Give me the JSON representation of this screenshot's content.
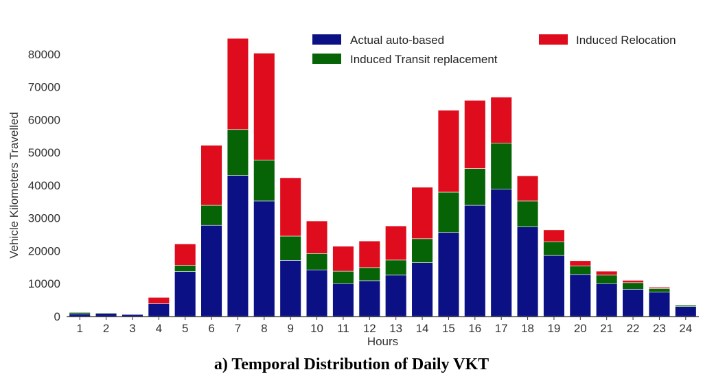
{
  "caption": "a) Temporal Distribution of Daily VKT",
  "chart_data": {
    "type": "bar",
    "stacked": true,
    "title": "",
    "xlabel": "Hours",
    "ylabel": "Vehicle Kilometers Travelled",
    "ylim": [
      0,
      85000
    ],
    "yticks": [
      0,
      10000,
      20000,
      30000,
      40000,
      50000,
      60000,
      70000,
      80000
    ],
    "grid": false,
    "legend_position": "top",
    "categories": [
      "1",
      "2",
      "3",
      "4",
      "5",
      "6",
      "7",
      "8",
      "9",
      "10",
      "11",
      "12",
      "13",
      "14",
      "15",
      "16",
      "17",
      "18",
      "19",
      "20",
      "21",
      "22",
      "23",
      "24"
    ],
    "series": [
      {
        "name": "Actual auto-based",
        "color": "#0b1185",
        "values": [
          800,
          900,
          600,
          3900,
          13700,
          27800,
          43000,
          35200,
          17100,
          14200,
          10000,
          10900,
          12600,
          16400,
          25600,
          33900,
          38800,
          27300,
          18600,
          12800,
          10000,
          8300,
          7400,
          3000
        ]
      },
      {
        "name": "Induced Transit replacement",
        "color": "#066406",
        "values": [
          400,
          200,
          100,
          0,
          1900,
          6100,
          14000,
          12500,
          7400,
          5000,
          3800,
          4000,
          4600,
          7300,
          12300,
          11200,
          14100,
          7900,
          4200,
          2600,
          2600,
          2000,
          1100,
          400
        ]
      },
      {
        "name": "Induced Relocation",
        "color": "#de0c1c",
        "values": [
          0,
          0,
          0,
          1900,
          6500,
          18300,
          27800,
          32600,
          17800,
          9900,
          7600,
          8100,
          10400,
          15700,
          25000,
          20800,
          14000,
          7700,
          3600,
          1600,
          1200,
          700,
          400,
          0
        ]
      }
    ]
  }
}
